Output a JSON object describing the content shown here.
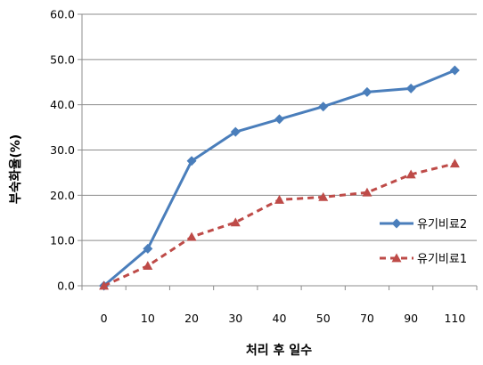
{
  "chart_data": {
    "type": "line",
    "categories": [
      "0",
      "10",
      "20",
      "30",
      "40",
      "50",
      "70",
      "90",
      "110"
    ],
    "series": [
      {
        "name": "유기비료2",
        "values": [
          0.0,
          8.2,
          27.6,
          34.0,
          36.8,
          39.6,
          42.8,
          43.6,
          47.6
        ],
        "color": "#4a7ebb",
        "marker": "diamond",
        "line_style": "solid"
      },
      {
        "name": "유기비료1",
        "values": [
          0.0,
          4.4,
          10.8,
          14.0,
          19.0,
          19.6,
          20.6,
          24.6,
          27.0
        ],
        "color": "#be4b48",
        "marker": "triangle",
        "line_style": "dashed"
      }
    ],
    "xlabel": "처리 후 일수",
    "ylabel": "부숙화율(%)",
    "ylim": [
      0,
      60
    ],
    "yticks": [
      "0.0",
      "10.0",
      "20.0",
      "30.0",
      "40.0",
      "50.0",
      "60.0"
    ],
    "grid": true,
    "legend": "right"
  }
}
